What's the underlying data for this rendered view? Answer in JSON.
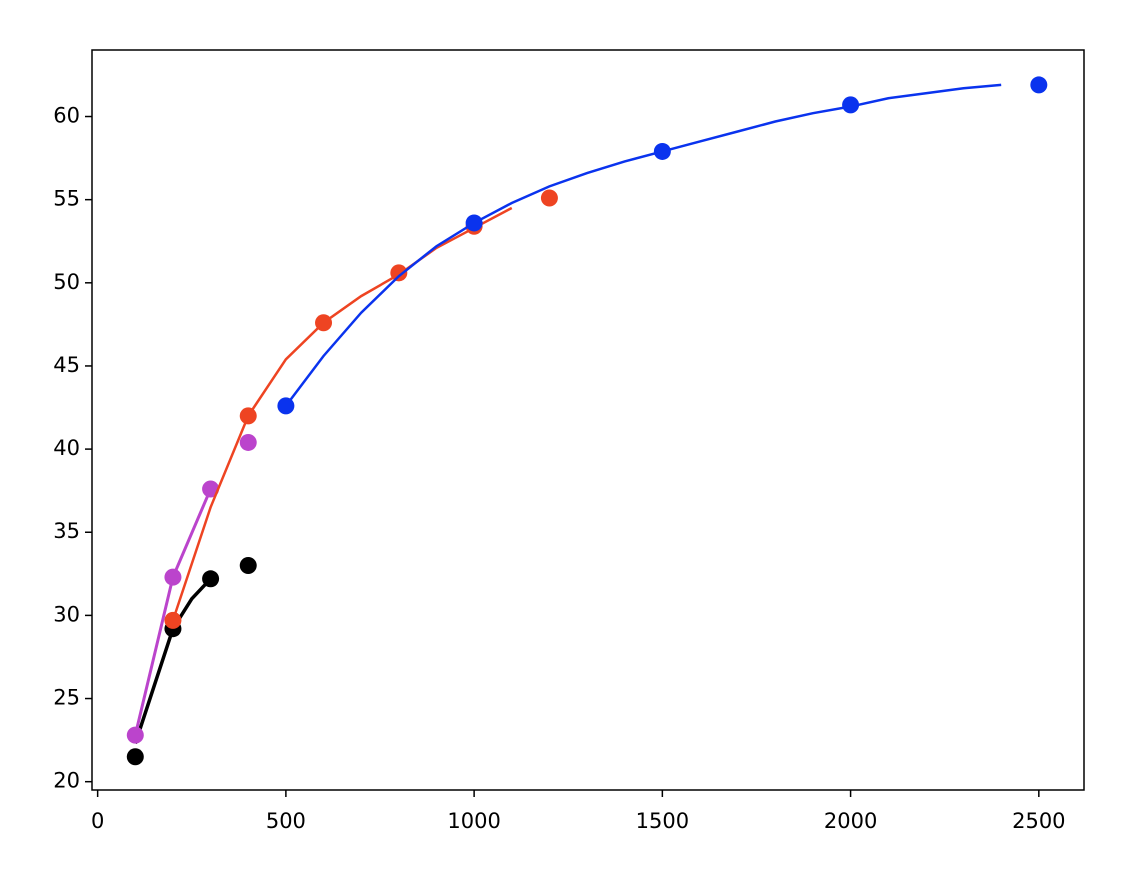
{
  "chart_data": {
    "type": "line",
    "xlim": [
      -15,
      2620
    ],
    "ylim": [
      19.5,
      64
    ],
    "xticks": [
      0,
      500,
      1000,
      1500,
      2000,
      2500
    ],
    "yticks": [
      20,
      25,
      30,
      35,
      40,
      45,
      50,
      55,
      60
    ],
    "series": [
      {
        "color": "#000000",
        "line_width": 3.5,
        "line_x": [
          100,
          200,
          250,
          300
        ],
        "line_values": [
          22.3,
          29.2,
          31.0,
          32.2
        ],
        "points_x": [
          100,
          200,
          300,
          400
        ],
        "points_values": [
          21.5,
          29.2,
          32.2,
          33.0
        ]
      },
      {
        "color": "#bb44cc",
        "line_width": 3,
        "line_x": [
          100,
          200,
          300
        ],
        "line_values": [
          22.8,
          32.3,
          37.6
        ],
        "points_x": [
          100,
          200,
          300,
          400
        ],
        "points_values": [
          22.8,
          32.3,
          37.6,
          40.4
        ]
      },
      {
        "color": "#ee4422",
        "line_width": 2.5,
        "line_x": [
          200,
          300,
          400,
          500,
          600,
          700,
          800,
          900,
          1000,
          1100
        ],
        "line_values": [
          29.7,
          36.5,
          42.0,
          45.4,
          47.6,
          49.2,
          50.5,
          52.1,
          53.3,
          54.5
        ],
        "points_x": [
          200,
          400,
          600,
          800,
          1000,
          1200
        ],
        "points_values": [
          29.7,
          42.0,
          47.6,
          50.6,
          53.4,
          55.1
        ]
      },
      {
        "color": "#0a33ee",
        "line_width": 2.5,
        "line_x": [
          500,
          600,
          700,
          800,
          900,
          1000,
          1100,
          1200,
          1300,
          1400,
          1500,
          1600,
          1700,
          1800,
          1900,
          2000,
          2100,
          2200,
          2300,
          2400
        ],
        "line_values": [
          42.6,
          45.6,
          48.2,
          50.4,
          52.2,
          53.6,
          54.8,
          55.8,
          56.6,
          57.3,
          57.9,
          58.5,
          59.1,
          59.7,
          60.2,
          60.6,
          61.1,
          61.4,
          61.7,
          61.9
        ],
        "points_x": [
          500,
          1000,
          1500,
          2000,
          2500
        ],
        "points_values": [
          42.6,
          53.6,
          57.9,
          60.7,
          61.9
        ]
      }
    ]
  }
}
